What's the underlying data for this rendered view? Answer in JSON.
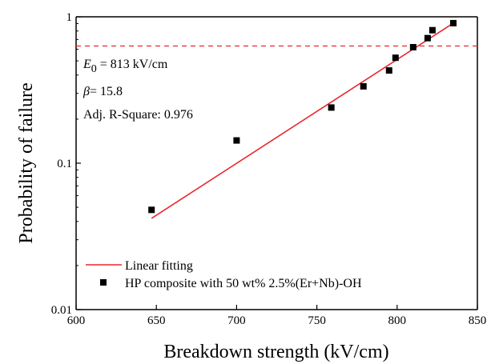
{
  "chart_data": {
    "type": "scatter",
    "xlabel": "Breakdown strength (kV/cm)",
    "ylabel": "Probability of failure",
    "xlim": [
      600,
      850
    ],
    "ylim": [
      0.01,
      1
    ],
    "y_scale": "log",
    "grid": false,
    "legend_position": "bottom-left",
    "x_ticks": [
      600,
      650,
      700,
      750,
      800,
      850
    ],
    "x_tick_labels": [
      "600",
      "650",
      "700",
      "750",
      "800",
      "850"
    ],
    "y_ticks": [
      0.01,
      0.1,
      1
    ],
    "y_tick_labels": [
      "0.01",
      "0.1",
      "1"
    ],
    "series": [
      {
        "name": "HP composite with 50 wt% 2.5%(Er+Nb)-OH",
        "kind": "scatter",
        "color": "#000000",
        "x": [
          647,
          700,
          759,
          779,
          795,
          799,
          810,
          819,
          822,
          835
        ],
        "y": [
          0.048,
          0.143,
          0.24,
          0.335,
          0.43,
          0.525,
          0.62,
          0.715,
          0.81,
          0.905
        ]
      },
      {
        "name": "Linear fitting",
        "kind": "line",
        "color": "#e8262b",
        "x": [
          647,
          835
        ],
        "y": [
          0.042,
          0.905
        ]
      }
    ],
    "reference_line": {
      "y": 0.632,
      "color": "#e8262b",
      "style": "dashed"
    },
    "annotations": {
      "e0_symbol": "E",
      "e0_subscript": "0",
      "e0_value": " = 813 kV/cm",
      "beta_symbol": "β",
      "beta_value": "= 15.8",
      "r_square": "Adj. R-Square: 0.976"
    }
  }
}
